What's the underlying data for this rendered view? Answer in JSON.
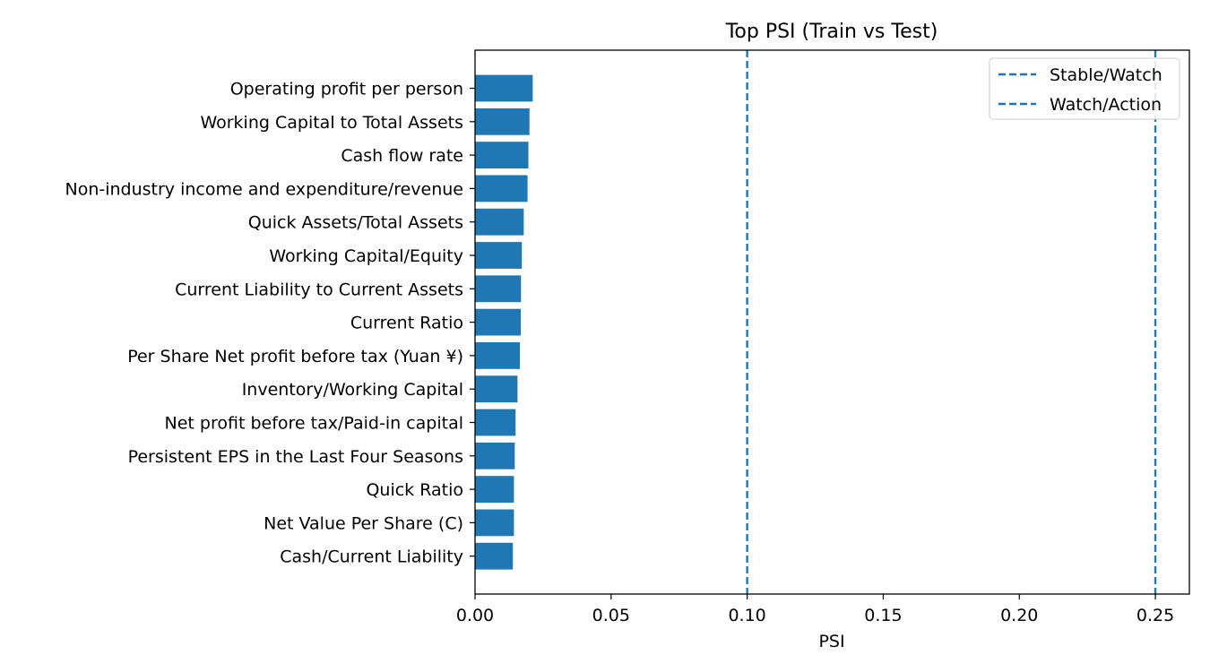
{
  "chart_data": {
    "type": "bar",
    "orientation": "horizontal",
    "title": "Top PSI (Train vs Test)",
    "xlabel": "PSI",
    "ylabel": "",
    "xlim": [
      0.0,
      0.2625
    ],
    "xticks": [
      "0.00",
      "0.05",
      "0.10",
      "0.15",
      "0.20",
      "0.25"
    ],
    "categories": [
      "Operating profit per person",
      "Working Capital to Total Assets",
      "Cash flow rate",
      "Non-industry income and expenditure/revenue",
      "Quick Assets/Total Assets",
      "Working Capital/Equity",
      "Current Liability to Current Assets",
      "Current Ratio",
      "Per Share Net profit before tax (Yuan ¥)",
      "Inventory/Working Capital",
      "Net profit before tax/Paid-in capital",
      "Persistent EPS in the Last Four Seasons",
      "Quick Ratio",
      "Net Value Per Share (C)",
      "Cash/Current Liability"
    ],
    "values": [
      0.0212,
      0.02,
      0.0196,
      0.0193,
      0.0179,
      0.0172,
      0.0169,
      0.0168,
      0.0165,
      0.0156,
      0.0149,
      0.0146,
      0.0143,
      0.0143,
      0.0139
    ],
    "bar_color": "#1f77b4",
    "reference_lines": [
      {
        "name": "Stable/Watch",
        "x": 0.1,
        "color": "#1f77b4",
        "style": "dashed"
      },
      {
        "name": "Watch/Action",
        "x": 0.25,
        "color": "#1f77b4",
        "style": "dashed"
      }
    ],
    "legend": "top-right",
    "grid": false
  }
}
